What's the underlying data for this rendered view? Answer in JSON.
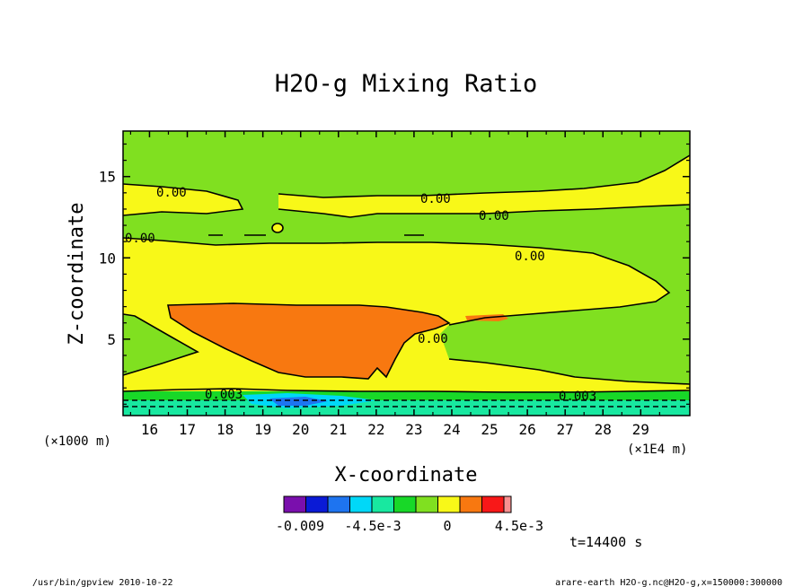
{
  "chart_data": {
    "type": "heatmap",
    "title": "H2O-g Mixing Ratio",
    "xlabel": "X-coordinate",
    "ylabel": "Z-coordinate",
    "x_unit_left": "(×1000 m)",
    "x_unit_right": "(×1E4 m)",
    "xlim": [
      15.3,
      30.3
    ],
    "ylim": [
      0.3,
      17.8
    ],
    "x_ticks": [
      "16",
      "17",
      "18",
      "19",
      "20",
      "21",
      "22",
      "23",
      "24",
      "25",
      "26",
      "27",
      "28",
      "29"
    ],
    "y_ticks": [
      "5",
      "10",
      "15"
    ],
    "y_tick_values": [
      5,
      10,
      15
    ],
    "time_label": "t=14400 s",
    "footer_left": "/usr/bin/gpview  2010-10-22",
    "footer_right": "arare-earth_H2O-g.nc@H2O-g,x=150000:300000",
    "colorbar": {
      "colors": [
        "#7a0fad",
        "#0a1ad6",
        "#1e74f0",
        "#00d8f8",
        "#18e8a0",
        "#18d828",
        "#80e020",
        "#f8f818",
        "#f87810",
        "#f81818",
        "#f89090"
      ],
      "labels": [
        "-0.009",
        "-4.5e-3",
        "0",
        "4.5e-3"
      ]
    },
    "contour_labels": [
      "0.00",
      "0.00",
      "0.00",
      "0.00",
      "0.00",
      "0.00",
      "0.003",
      "0.003"
    ],
    "background_color": "#80e020",
    "yellow_color": "#f8f818",
    "orange_color": "#f87810"
  }
}
